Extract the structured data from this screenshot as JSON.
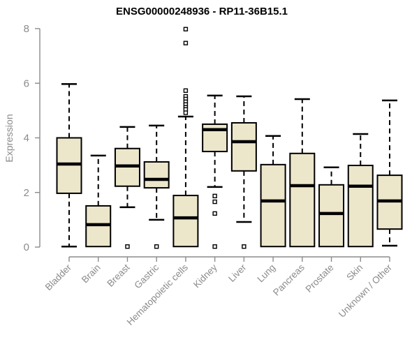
{
  "chart_data": {
    "type": "boxplot",
    "title": "ENSG00000248936 - RP11-36B15.1",
    "ylabel": "Expression",
    "xlabel": "",
    "ylim": [
      0,
      8
    ],
    "yticks": [
      0,
      2,
      4,
      6,
      8
    ],
    "grid": false,
    "legend": "none",
    "categories": [
      "Bladder",
      "Brain",
      "Breast",
      "Gastric",
      "Hematopoietic cells",
      "Kidney",
      "Liver",
      "Lung",
      "Pancreas",
      "Prostate",
      "Skin",
      "Unknown / Other"
    ],
    "series": [
      {
        "category": "Bladder",
        "whisker_low": 0.02,
        "q1": 1.97,
        "median": 3.04,
        "q3": 4.0,
        "whisker_high": 5.97,
        "outliers": []
      },
      {
        "category": "Brain",
        "whisker_low": 0.02,
        "q1": 0.02,
        "median": 0.82,
        "q3": 1.51,
        "whisker_high": 3.35,
        "outliers": []
      },
      {
        "category": "Breast",
        "whisker_low": 1.46,
        "q1": 2.23,
        "median": 2.97,
        "q3": 3.61,
        "whisker_high": 4.4,
        "outliers": [
          0.02
        ]
      },
      {
        "category": "Gastric",
        "whisker_low": 1.0,
        "q1": 2.17,
        "median": 2.48,
        "q3": 3.12,
        "whisker_high": 4.45,
        "outliers": [
          0.02
        ]
      },
      {
        "category": "Hematopoietic cells",
        "whisker_low": 0.02,
        "q1": 0.02,
        "median": 1.07,
        "q3": 1.89,
        "whisker_high": 4.78,
        "outliers": [
          7.98,
          7.47,
          5.73,
          5.52,
          5.42,
          5.32,
          5.22,
          5.12,
          5.04,
          4.92
        ]
      },
      {
        "category": "Kidney",
        "whisker_low": 2.2,
        "q1": 3.5,
        "median": 4.3,
        "q3": 4.5,
        "whisker_high": 5.55,
        "outliers": [
          1.87,
          1.66,
          1.23,
          0.02
        ]
      },
      {
        "category": "Liver",
        "whisker_low": 0.92,
        "q1": 2.79,
        "median": 3.86,
        "q3": 4.55,
        "whisker_high": 5.52,
        "outliers": [
          0.02
        ]
      },
      {
        "category": "Lung",
        "whisker_low": 0.02,
        "q1": 0.02,
        "median": 1.69,
        "q3": 3.02,
        "whisker_high": 4.07,
        "outliers": []
      },
      {
        "category": "Pancreas",
        "whisker_low": 0.02,
        "q1": 0.02,
        "median": 2.25,
        "q3": 3.43,
        "whisker_high": 5.42,
        "outliers": []
      },
      {
        "category": "Prostate",
        "whisker_low": 0.02,
        "q1": 0.02,
        "median": 1.23,
        "q3": 2.28,
        "whisker_high": 2.92,
        "outliers": []
      },
      {
        "category": "Skin",
        "whisker_low": 0.02,
        "q1": 0.02,
        "median": 2.23,
        "q3": 2.99,
        "whisker_high": 4.14,
        "outliers": []
      },
      {
        "category": "Unknown / Other",
        "whisker_low": 0.05,
        "q1": 0.66,
        "median": 1.69,
        "q3": 2.63,
        "whisker_high": 5.37,
        "outliers": []
      }
    ]
  },
  "colors": {
    "background": "#ffffff",
    "box_fill": "#ECE6CB",
    "box_border": "#000000",
    "median": "#000000",
    "whisker": "#000000",
    "outlier_fill": "#ffffff",
    "axis": "#8b8b8b",
    "tick_label": "#8b8b8b",
    "title": "#000000"
  }
}
